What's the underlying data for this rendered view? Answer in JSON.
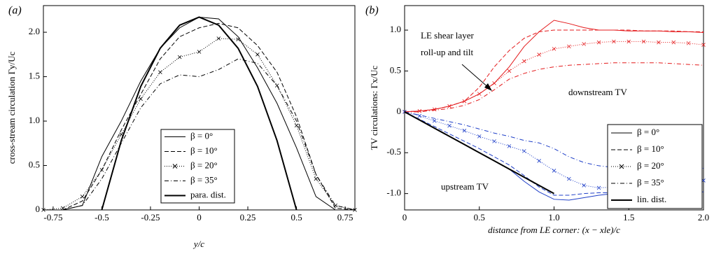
{
  "chart_data": [
    {
      "type": "line",
      "title": "(a)",
      "xlabel": "y/c",
      "ylabel": "cross-stream circulation Γy/Uc",
      "x": [
        -0.8,
        -0.7,
        -0.6,
        -0.5,
        -0.4,
        -0.3,
        -0.2,
        -0.1,
        0,
        0.1,
        0.2,
        0.3,
        0.4,
        0.5,
        0.6,
        0.7,
        0.8
      ],
      "xlim": [
        -0.8,
        0.8
      ],
      "xticks": [
        -0.75,
        -0.5,
        -0.25,
        0,
        0.25,
        0.5,
        0.75
      ],
      "ylim": [
        0,
        2.3
      ],
      "yticks": [
        0,
        0.5,
        {
          "value": 1,
          "label": "1.0"
        },
        1.5,
        {
          "value": 2,
          "label": "2.0"
        }
      ],
      "series": [
        {
          "name": "β = 0°",
          "color": "#000000",
          "dash": "solid",
          "values": [
            0,
            0,
            0.05,
            0.6,
            1.0,
            1.45,
            1.82,
            2.05,
            2.17,
            2.15,
            1.95,
            1.6,
            1.2,
            0.7,
            0.15,
            0,
            0
          ]
        },
        {
          "name": "β = 10°",
          "color": "#000000",
          "dash": "dashed",
          "values": [
            0,
            0,
            0.1,
            0.45,
            0.9,
            1.3,
            1.7,
            1.95,
            2.05,
            2.1,
            2.05,
            1.85,
            1.55,
            1.05,
            0.4,
            0.02,
            0
          ]
        },
        {
          "name": "β = 20°",
          "color": "#000000",
          "dash": "dotted",
          "marker": "x",
          "values": [
            0,
            0.02,
            0.15,
            0.45,
            0.85,
            1.25,
            1.55,
            1.72,
            1.78,
            1.93,
            1.92,
            1.75,
            1.4,
            0.95,
            0.35,
            0.05,
            0
          ]
        },
        {
          "name": "β = 35°",
          "color": "#000000",
          "dash": "dashdot",
          "values": [
            0,
            0,
            0.05,
            0.35,
            0.75,
            1.15,
            1.42,
            1.52,
            1.5,
            1.58,
            1.7,
            1.65,
            1.4,
            1.0,
            0.4,
            0.05,
            0
          ]
        },
        {
          "name": "para. dist.",
          "color": "#000000",
          "dash": "thick",
          "values": [
            null,
            null,
            null,
            0,
            0.78,
            1.39,
            1.82,
            2.08,
            2.17,
            2.08,
            1.82,
            1.39,
            0.78,
            0,
            null,
            null,
            null
          ]
        }
      ]
    },
    {
      "type": "line",
      "title": "(b)",
      "xlabel": "distance from LE corner: (x − xle)/c",
      "ylabel": "TV circulations: Γx/Uc",
      "x": [
        0,
        0.1,
        0.2,
        0.3,
        0.4,
        0.5,
        0.6,
        0.7,
        0.8,
        0.9,
        1.0,
        1.1,
        1.2,
        1.3,
        1.4,
        1.5,
        1.6,
        1.7,
        1.8,
        1.9,
        2.0
      ],
      "xlim": [
        0,
        2
      ],
      "xticks": [
        0,
        0.5,
        {
          "value": 1,
          "label": "1.0"
        },
        1.5,
        {
          "value": 2,
          "label": "2.0"
        }
      ],
      "ylim": [
        -1.2,
        1.3
      ],
      "yticks": [
        {
          "value": -1,
          "label": "-1.0"
        },
        -0.5,
        0,
        0.5,
        {
          "value": 1,
          "label": "1.0"
        }
      ],
      "downstream": {
        "label": "downstream TV",
        "color": "#e41a1c"
      },
      "upstream": {
        "label": "upstream TV",
        "color": "#1f3fc8"
      },
      "annotation": [
        "LE shear layer",
        "roll-up and tilt"
      ],
      "series": [
        {
          "name": "β = 0°",
          "dash": "solid",
          "downstream_values": [
            0,
            0.01,
            0.03,
            0.07,
            0.13,
            0.22,
            0.35,
            0.55,
            0.8,
            0.98,
            1.12,
            1.08,
            1.03,
            1.0,
            1.0,
            0.99,
            0.99,
            0.99,
            0.98,
            0.98,
            0.97
          ],
          "upstream_values": [
            0,
            -0.1,
            -0.2,
            -0.3,
            -0.4,
            -0.5,
            -0.6,
            -0.7,
            -0.85,
            -0.98,
            -1.07,
            -1.08,
            -1.05,
            -1.02,
            -1.0,
            -1.0,
            -0.99,
            -0.99,
            -0.98,
            -0.98,
            -0.98
          ]
        },
        {
          "name": "β = 10°",
          "dash": "dashed",
          "downstream_values": [
            0,
            0.01,
            0.03,
            0.07,
            0.13,
            0.3,
            0.55,
            0.75,
            0.9,
            0.98,
            1.0,
            1.0,
            1.0,
            1.0,
            1.0,
            1.0,
            0.99,
            0.99,
            0.99,
            0.98,
            0.98
          ],
          "upstream_values": [
            0,
            -0.09,
            -0.18,
            -0.27,
            -0.36,
            -0.45,
            -0.55,
            -0.65,
            -0.78,
            -0.92,
            -1.02,
            -1.02,
            -1.0,
            -0.99,
            -0.99,
            -0.98,
            -0.98,
            -0.98,
            -0.97,
            -0.97,
            -0.96
          ]
        },
        {
          "name": "β = 20°",
          "dash": "dotted",
          "marker": "x",
          "downstream_values": [
            0,
            0.01,
            0.03,
            0.07,
            0.13,
            0.22,
            0.35,
            0.5,
            0.62,
            0.7,
            0.77,
            0.8,
            0.83,
            0.85,
            0.86,
            0.86,
            0.86,
            0.85,
            0.85,
            0.84,
            0.82
          ],
          "upstream_values": [
            0,
            -0.05,
            -0.11,
            -0.17,
            -0.23,
            -0.3,
            -0.36,
            -0.42,
            -0.48,
            -0.6,
            -0.72,
            -0.82,
            -0.9,
            -0.93,
            -0.92,
            -0.9,
            -0.88,
            -0.87,
            -0.86,
            -0.85,
            -0.84
          ]
        },
        {
          "name": "β = 35°",
          "dash": "dashdot",
          "downstream_values": [
            0,
            0,
            0.02,
            0.04,
            0.08,
            0.15,
            0.27,
            0.4,
            0.47,
            0.52,
            0.55,
            0.57,
            0.58,
            0.59,
            0.6,
            0.6,
            0.6,
            0.6,
            0.59,
            0.58,
            0.57
          ],
          "upstream_values": [
            0,
            -0.04,
            -0.08,
            -0.12,
            -0.16,
            -0.21,
            -0.26,
            -0.3,
            -0.35,
            -0.38,
            -0.45,
            -0.55,
            -0.62,
            -0.66,
            -0.68,
            -0.7,
            -0.71,
            -0.72,
            -0.71,
            -0.7,
            -0.69
          ]
        },
        {
          "name": "lin. dist.",
          "dash": "thick",
          "color": "#000000",
          "values": [
            0,
            -0.1,
            -0.2,
            -0.3,
            -0.4,
            -0.5,
            -0.6,
            -0.7,
            -0.8,
            -0.9,
            -1.0,
            null,
            null,
            null,
            null,
            null,
            null,
            null,
            null,
            null,
            null
          ]
        }
      ]
    }
  ]
}
